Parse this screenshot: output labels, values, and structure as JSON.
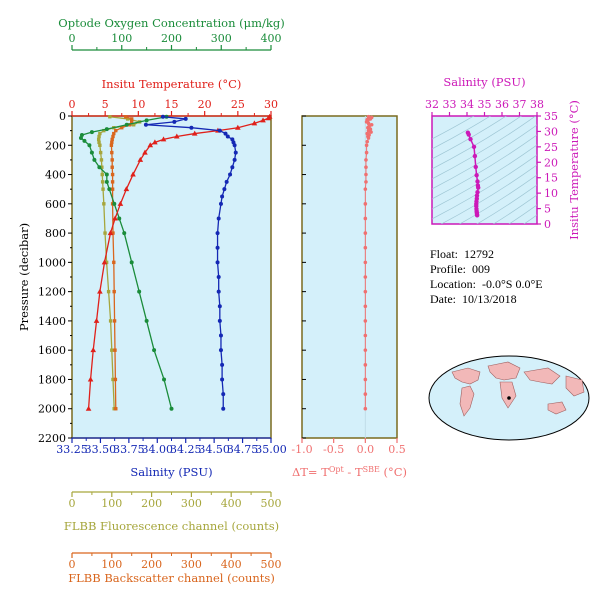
{
  "colors": {
    "oxygen": "#1a8c3a",
    "temperature": "#e0201a",
    "salinity": "#1428b4",
    "fluorescence": "#a6a63c",
    "backscatter": "#d9661e",
    "delta": "#f07070",
    "ts": "#cc19b8",
    "panel_bg": "#d4f0fa",
    "frame": "#7a6a1e"
  },
  "info": {
    "float_label": "Float:",
    "float_value": "12792",
    "profile_label": "Profile:",
    "profile_value": "009",
    "location_label": "Location:",
    "location_value": "-0.0°S   0.0°E",
    "date_label": "Date:",
    "date_value": "10/13/2018"
  },
  "chart_data": [
    {
      "type": "line",
      "name": "main-profile",
      "ylabel": "Pressure (decibar)",
      "ylim": [
        2200,
        0
      ],
      "yticks": [
        "0",
        "200",
        "400",
        "600",
        "800",
        "1000",
        "1200",
        "1400",
        "1600",
        "1800",
        "2000",
        "2200"
      ],
      "axes": {
        "oxygen": {
          "label": "Optode Oxygen Concentration (μm/kg)",
          "range": [
            0,
            400
          ],
          "ticks": [
            "0",
            "100",
            "200",
            "300",
            "400"
          ]
        },
        "temperature": {
          "label": "Insitu Temperature (°C)",
          "range": [
            0,
            30
          ],
          "ticks": [
            "0",
            "5",
            "10",
            "15",
            "20",
            "25",
            "30"
          ]
        },
        "salinity": {
          "label": "Salinity (PSU)",
          "range": [
            33.25,
            35.0
          ],
          "ticks": [
            "33.25",
            "33.50",
            "33.75",
            "34.00",
            "34.25",
            "34.50",
            "34.75",
            "35.00"
          ]
        },
        "fluorescence": {
          "label": "FLBB Fluorescence channel (counts)",
          "range": [
            0,
            500
          ],
          "ticks": [
            "0",
            "100",
            "200",
            "300",
            "400",
            "500"
          ]
        },
        "backscatter": {
          "label": "FLBB Backscatter channel (counts)",
          "range": [
            0,
            500
          ],
          "ticks": [
            "0",
            "100",
            "200",
            "300",
            "400",
            "500"
          ]
        }
      },
      "series": {
        "temperature": {
          "p": [
            5,
            15,
            30,
            50,
            80,
            100,
            120,
            140,
            160,
            180,
            200,
            250,
            300,
            400,
            500,
            600,
            700,
            800,
            1000,
            1200,
            1400,
            1600,
            1800,
            2000
          ],
          "v": [
            29.8,
            29.6,
            28.8,
            27.5,
            25.0,
            22.0,
            18.5,
            15.8,
            13.8,
            12.5,
            11.8,
            11.0,
            10.3,
            9.2,
            8.2,
            7.3,
            6.5,
            5.8,
            4.9,
            4.2,
            3.7,
            3.2,
            2.8,
            2.5
          ]
        },
        "salinity": {
          "p": [
            5,
            20,
            40,
            60,
            80,
            100,
            120,
            140,
            160,
            180,
            200,
            250,
            300,
            350,
            400,
            450,
            500,
            550,
            600,
            700,
            800,
            900,
            1000,
            1100,
            1200,
            1300,
            1400,
            1500,
            1600,
            1700,
            1800,
            1900,
            2000
          ],
          "v": [
            34.05,
            34.25,
            34.15,
            33.9,
            34.3,
            34.55,
            34.6,
            34.62,
            34.66,
            34.67,
            34.68,
            34.69,
            34.68,
            34.66,
            34.64,
            34.61,
            34.59,
            34.57,
            34.56,
            34.54,
            34.53,
            34.53,
            34.53,
            34.54,
            34.54,
            34.55,
            34.55,
            34.56,
            34.56,
            34.57,
            34.57,
            34.58,
            34.58
          ]
        },
        "oxygen": {
          "p": [
            5,
            30,
            60,
            90,
            110,
            130,
            150,
            170,
            200,
            250,
            300,
            350,
            400,
            450,
            500,
            600,
            700,
            800,
            1000,
            1200,
            1400,
            1600,
            1800,
            2000
          ],
          "v": [
            190,
            150,
            110,
            70,
            40,
            20,
            18,
            25,
            35,
            40,
            45,
            55,
            70,
            70,
            75,
            85,
            95,
            105,
            120,
            135,
            150,
            165,
            185,
            200
          ]
        },
        "fluorescence": {
          "p": [
            5,
            20,
            40,
            60,
            80,
            100,
            120,
            140,
            160,
            180,
            200,
            250,
            300,
            350,
            400,
            450,
            500,
            600,
            800,
            1000,
            1200,
            1400,
            1600,
            1800,
            2000
          ],
          "v": [
            95,
            140,
            170,
            155,
            105,
            80,
            70,
            68,
            67,
            68,
            70,
            72,
            74,
            75,
            76,
            77,
            78,
            80,
            83,
            87,
            92,
            97,
            100,
            103,
            106
          ]
        },
        "backscatter": {
          "p": [
            5,
            20,
            40,
            60,
            80,
            100,
            120,
            140,
            160,
            180,
            200,
            250,
            300,
            350,
            400,
            450,
            500,
            600,
            800,
            1000,
            1200,
            1400,
            1600,
            1800,
            2000
          ],
          "v": [
            135,
            150,
            150,
            145,
            125,
            110,
            105,
            103,
            101,
            100,
            99,
            100,
            101,
            101,
            102,
            102,
            102,
            102,
            103,
            105,
            106,
            107,
            108,
            109,
            110
          ]
        }
      }
    },
    {
      "type": "scatter",
      "name": "delta-t",
      "xlabel": "ΔT= T^Opt - T^SBE (°C)",
      "xlim": [
        -1.0,
        0.5
      ],
      "xticks": [
        "-1.0",
        "-0.5",
        "0.0",
        "0.5"
      ],
      "points": {
        "p": [
          5,
          10,
          15,
          20,
          25,
          30,
          40,
          50,
          60,
          70,
          80,
          90,
          100,
          110,
          120,
          130,
          140,
          150,
          175,
          200,
          250,
          300,
          350,
          400,
          450,
          500,
          600,
          700,
          800,
          900,
          1000,
          1100,
          1200,
          1300,
          1400,
          1500,
          1600,
          1700,
          1800,
          1900,
          2000
        ],
        "v": [
          0.05,
          0.1,
          0.06,
          0.08,
          0.03,
          0.04,
          0.02,
          0.05,
          0.1,
          0.06,
          0.04,
          0.08,
          0.05,
          0.09,
          0.03,
          0.06,
          0.04,
          0.05,
          0.03,
          0.02,
          0.02,
          0.01,
          0.01,
          0.01,
          0.01,
          0.0,
          0.0,
          0.0,
          0.0,
          0.0,
          0.0,
          0.0,
          0.0,
          0.0,
          0.0,
          0.0,
          0.0,
          0.0,
          0.0,
          0.0,
          0.0
        ]
      }
    },
    {
      "type": "scatter",
      "name": "ts-diagram",
      "xlabel": "Salinity (PSU)",
      "ylabel": "Insitu Temperature (°C)",
      "xlim": [
        32,
        38
      ],
      "ylim": [
        0,
        35
      ],
      "xticks": [
        "32",
        "33",
        "34",
        "35",
        "36",
        "37",
        "38"
      ],
      "yticks": [
        "0",
        "5",
        "10",
        "15",
        "20",
        "25",
        "30",
        "35"
      ],
      "points": {
        "s": [
          34.05,
          34.1,
          34.2,
          34.4,
          34.45,
          34.5,
          34.55,
          34.6,
          34.62,
          34.64,
          34.6,
          34.57,
          34.56,
          34.54,
          34.53,
          34.53,
          34.54,
          34.55,
          34.56,
          34.57,
          34.58
        ],
        "t": [
          29.6,
          29.0,
          27.5,
          25.0,
          22.0,
          18.5,
          15.8,
          13.8,
          12.5,
          11.8,
          10.3,
          9.2,
          8.2,
          7.3,
          6.5,
          5.8,
          4.9,
          4.2,
          3.7,
          3.2,
          2.8
        ]
      }
    }
  ]
}
